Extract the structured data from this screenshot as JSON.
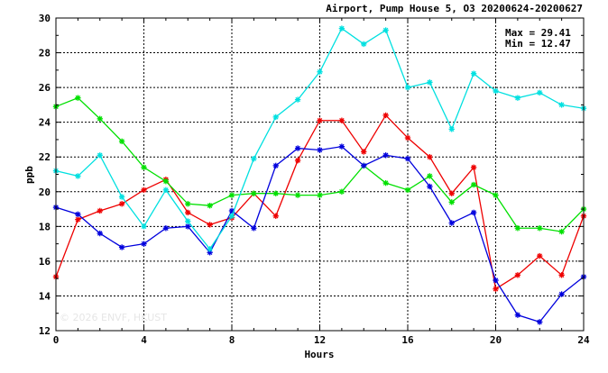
{
  "chart_data": {
    "type": "line",
    "title": "Airport, Pump House 5, O3 20200624-20200627",
    "xlabel": "Hours",
    "ylabel": "ppb",
    "xlim": [
      0,
      24
    ],
    "ylim": [
      12,
      30
    ],
    "xticks": [
      0,
      4,
      8,
      12,
      16,
      20,
      24
    ],
    "yticks": [
      12,
      14,
      16,
      18,
      20,
      22,
      24,
      26,
      28,
      30
    ],
    "grid": true,
    "marker": "asterisk",
    "annotations": [
      "Max = 29.41",
      "Min = 12.47"
    ],
    "watermark": "© 2026 ENVF, HKUST",
    "x": [
      0,
      1,
      2,
      3,
      4,
      5,
      6,
      7,
      8,
      9,
      10,
      11,
      12,
      13,
      14,
      15,
      16,
      17,
      18,
      19,
      20,
      21,
      22,
      23,
      24
    ],
    "series": [
      {
        "color": "#ee0000",
        "values": [
          15.1,
          18.4,
          18.9,
          19.3,
          20.1,
          20.7,
          18.8,
          18.1,
          18.5,
          19.9,
          18.6,
          21.8,
          24.1,
          24.1,
          22.3,
          24.4,
          23.1,
          22.0,
          19.9,
          21.4,
          14.4,
          15.2,
          16.3,
          15.2,
          18.6
        ]
      },
      {
        "color": "#00e000",
        "values": [
          24.9,
          25.4,
          24.2,
          22.9,
          21.4,
          20.6,
          19.3,
          19.2,
          19.8,
          19.9,
          19.9,
          19.8,
          19.8,
          20.0,
          21.5,
          20.5,
          20.1,
          20.9,
          19.4,
          20.4,
          19.8,
          17.9,
          17.9,
          17.7,
          19.0
        ]
      },
      {
        "color": "#0000dd",
        "values": [
          19.1,
          18.7,
          17.6,
          16.8,
          17.0,
          17.9,
          18.0,
          16.5,
          18.9,
          17.9,
          21.5,
          22.5,
          22.4,
          22.6,
          21.5,
          22.1,
          21.9,
          20.3,
          18.2,
          18.8,
          14.9,
          12.9,
          12.5,
          14.1,
          15.1
        ]
      },
      {
        "color": "#00e0e0",
        "values": [
          21.2,
          20.9,
          22.1,
          19.7,
          18.0,
          20.1,
          18.3,
          16.7,
          18.6,
          21.9,
          24.3,
          25.3,
          26.9,
          29.4,
          28.5,
          29.3,
          26.0,
          26.3,
          23.6,
          26.8,
          25.8,
          25.4,
          25.7,
          25.0,
          24.8
        ]
      }
    ]
  }
}
